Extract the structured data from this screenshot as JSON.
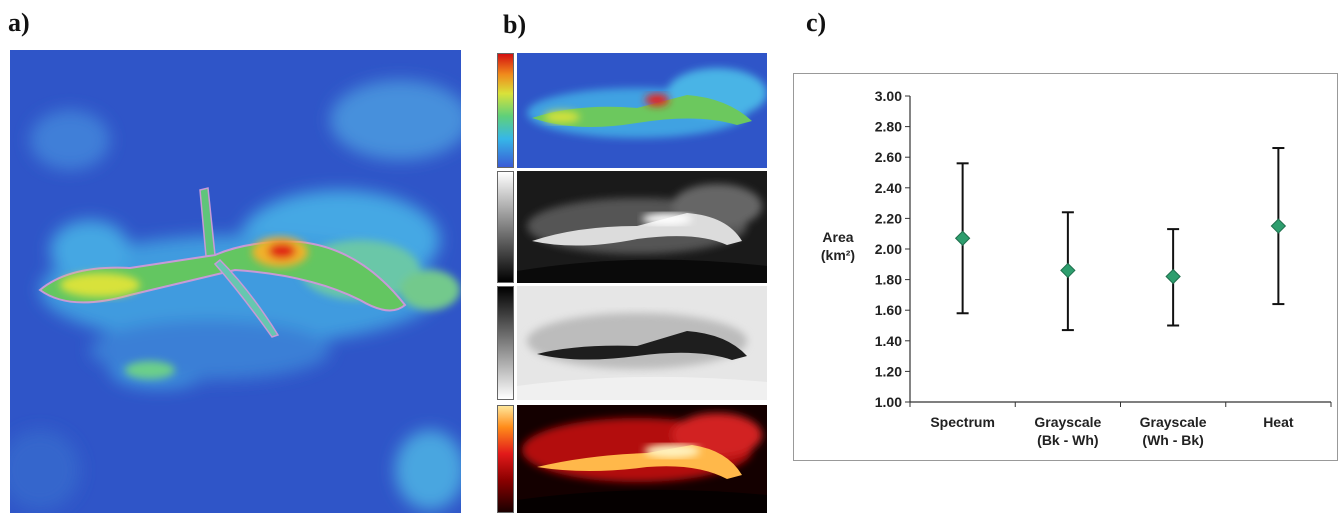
{
  "panels": {
    "a_label": "a)",
    "b_label": "b)",
    "c_label": "c)"
  },
  "colors": {
    "marker_fill": "#2e9e6e",
    "marker_stroke": "#1f6e4c",
    "errorbar": "#111111",
    "axis": "#333333"
  },
  "chart_data": {
    "type": "scatter",
    "title": "",
    "xlabel": "",
    "ylabel": "Area",
    "ylabel_unit": "(km²)",
    "categories": [
      [
        "Spectrum"
      ],
      [
        "Grayscale",
        "(Bk - Wh)"
      ],
      [
        "Grayscale",
        "(Wh - Bk)"
      ],
      [
        "Heat"
      ]
    ],
    "values": [
      2.07,
      1.86,
      1.82,
      2.15
    ],
    "error_high": [
      2.56,
      2.24,
      2.13,
      2.66
    ],
    "error_low": [
      1.58,
      1.47,
      1.5,
      1.64
    ],
    "ylim": [
      1.0,
      3.0
    ],
    "yticks": [
      "1.00",
      "1.20",
      "1.40",
      "1.60",
      "1.80",
      "2.00",
      "2.20",
      "2.40",
      "2.60",
      "2.80",
      "3.00"
    ],
    "grid": false,
    "legend": "none"
  }
}
